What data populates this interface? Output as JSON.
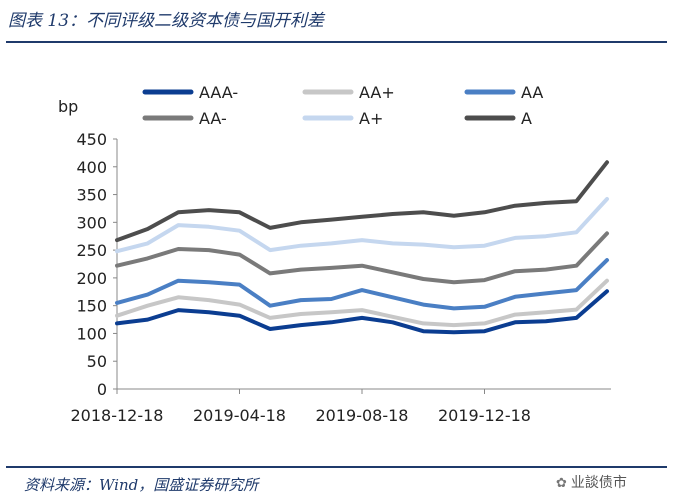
{
  "figure": {
    "title": "图表 13：不同评级二级资本债与国开利差",
    "source": "资料来源：Wind，国盛证券研究所",
    "watermark": "业談债市",
    "watermark_icon": "wechat-icon"
  },
  "chart_data": {
    "type": "line",
    "title": "不同评级二级资本债与国开利差",
    "xlabel": "",
    "ylabel": "bp",
    "ylim": [
      0,
      450
    ],
    "yticks": [
      0,
      50,
      100,
      150,
      200,
      250,
      300,
      350,
      400,
      450
    ],
    "xticks": [
      "2018-12-18",
      "2019-04-18",
      "2019-08-18",
      "2019-12-18"
    ],
    "x": [
      "2018-12-18",
      "2019-01-18",
      "2019-02-18",
      "2019-03-18",
      "2019-04-18",
      "2019-05-18",
      "2019-06-18",
      "2019-07-18",
      "2019-08-18",
      "2019-09-18",
      "2019-10-18",
      "2019-11-18",
      "2019-12-18",
      "2020-01-18",
      "2020-02-18",
      "2020-03-18",
      "2020-04-01"
    ],
    "grid": false,
    "legend_position": "top",
    "series": [
      {
        "name": "AAA-",
        "color": "#0b3d91",
        "values": [
          118,
          125,
          142,
          138,
          132,
          108,
          115,
          120,
          128,
          120,
          104,
          102,
          104,
          120,
          122,
          128,
          176
        ]
      },
      {
        "name": "AA+",
        "color": "#c7c7c7",
        "values": [
          132,
          150,
          165,
          160,
          152,
          128,
          135,
          138,
          142,
          130,
          118,
          115,
          118,
          134,
          138,
          143,
          195
        ]
      },
      {
        "name": "AA",
        "color": "#4a7fc4",
        "values": [
          155,
          170,
          195,
          192,
          188,
          150,
          160,
          162,
          178,
          165,
          152,
          145,
          148,
          166,
          172,
          178,
          232
        ]
      },
      {
        "name": "AA-",
        "color": "#7a7a7a",
        "values": [
          222,
          235,
          252,
          250,
          242,
          208,
          215,
          218,
          222,
          210,
          198,
          192,
          196,
          212,
          215,
          222,
          280
        ]
      },
      {
        "name": "A+",
        "color": "#c5d7ef",
        "values": [
          248,
          262,
          295,
          292,
          285,
          250,
          258,
          262,
          268,
          262,
          260,
          255,
          258,
          272,
          275,
          282,
          342
        ]
      },
      {
        "name": "A",
        "color": "#4d4d4d",
        "values": [
          268,
          288,
          318,
          322,
          318,
          290,
          300,
          305,
          310,
          315,
          318,
          312,
          318,
          330,
          335,
          338,
          408
        ]
      }
    ]
  }
}
